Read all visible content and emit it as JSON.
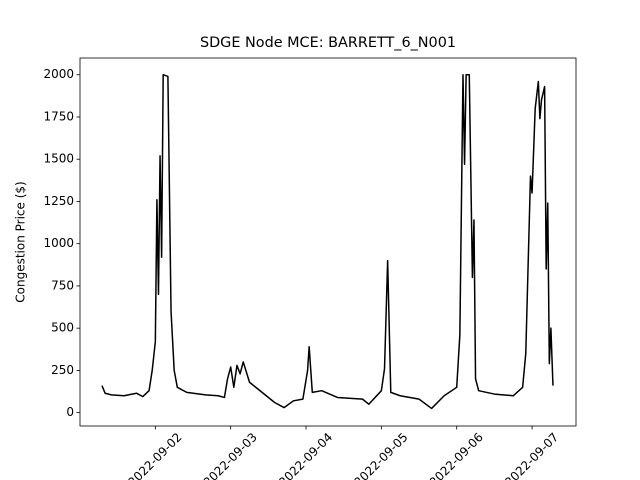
{
  "chart_data": {
    "type": "line",
    "title": "SDGE Node MCE: BARRETT_6_N001",
    "y_label": "Congestion Price ($)",
    "x": [
      "2022-09-01 07:00",
      "2022-09-01 08:00",
      "2022-09-01 10:00",
      "2022-09-01 14:00",
      "2022-09-01 18:00",
      "2022-09-01 20:00",
      "2022-09-01 22:00",
      "2022-09-01 23:00",
      "2022-09-02 00:00",
      "2022-09-02 00:30",
      "2022-09-02 01:00",
      "2022-09-02 01:30",
      "2022-09-02 02:00",
      "2022-09-02 02:30",
      "2022-09-02 04:00",
      "2022-09-02 05:00",
      "2022-09-02 06:00",
      "2022-09-02 07:00",
      "2022-09-02 10:00",
      "2022-09-02 16:00",
      "2022-09-02 20:00",
      "2022-09-02 22:00",
      "2022-09-02 23:00",
      "2022-09-03 00:00",
      "2022-09-03 01:00",
      "2022-09-03 02:00",
      "2022-09-03 03:00",
      "2022-09-03 04:00",
      "2022-09-03 06:00",
      "2022-09-03 10:00",
      "2022-09-03 14:00",
      "2022-09-03 17:00",
      "2022-09-03 20:00",
      "2022-09-03 23:00",
      "2022-09-04 00:30",
      "2022-09-04 01:00",
      "2022-09-04 02:00",
      "2022-09-04 05:00",
      "2022-09-04 10:00",
      "2022-09-04 18:00",
      "2022-09-04 20:00",
      "2022-09-05 00:00",
      "2022-09-05 01:00",
      "2022-09-05 02:00",
      "2022-09-05 03:00",
      "2022-09-05 06:00",
      "2022-09-05 12:00",
      "2022-09-05 16:00",
      "2022-09-05 20:00",
      "2022-09-06 00:00",
      "2022-09-06 01:00",
      "2022-09-06 02:00",
      "2022-09-06 02:30",
      "2022-09-06 03:00",
      "2022-09-06 04:00",
      "2022-09-06 05:00",
      "2022-09-06 05:30",
      "2022-09-06 06:00",
      "2022-09-06 07:00",
      "2022-09-06 12:00",
      "2022-09-06 18:00",
      "2022-09-06 21:00",
      "2022-09-06 22:00",
      "2022-09-06 23:30",
      "2022-09-07 00:00",
      "2022-09-07 01:00",
      "2022-09-07 02:00",
      "2022-09-07 02:30",
      "2022-09-07 03:00",
      "2022-09-07 04:00",
      "2022-09-07 04:30",
      "2022-09-07 05:00",
      "2022-09-07 05:30",
      "2022-09-07 06:00",
      "2022-09-07 06:40"
    ],
    "series": [
      {
        "color": "#000000",
        "values": [
          160,
          115,
          105,
          100,
          115,
          95,
          130,
          250,
          420,
          1260,
          700,
          1520,
          920,
          2000,
          1990,
          600,
          250,
          150,
          120,
          105,
          100,
          90,
          200,
          270,
          150,
          280,
          230,
          300,
          180,
          120,
          60,
          30,
          70,
          80,
          250,
          390,
          120,
          130,
          90,
          80,
          50,
          130,
          260,
          900,
          120,
          100,
          80,
          25,
          100,
          150,
          460,
          2000,
          1470,
          2000,
          2000,
          800,
          1140,
          200,
          130,
          110,
          100,
          150,
          350,
          1400,
          1300,
          1800,
          1960,
          1740,
          1850,
          1930,
          850,
          1240,
          290,
          500,
          160
        ]
      }
    ],
    "xlim": [
      "2022-09-01 00:00",
      "2022-09-07 14:00"
    ],
    "xticks": [
      "2022-09-02",
      "2022-09-03",
      "2022-09-04",
      "2022-09-05",
      "2022-09-06",
      "2022-09-07"
    ],
    "ylim": [
      -79,
      2099
    ],
    "yticks": [
      0,
      250,
      500,
      750,
      1000,
      1250,
      1500,
      1750,
      2000
    ]
  }
}
